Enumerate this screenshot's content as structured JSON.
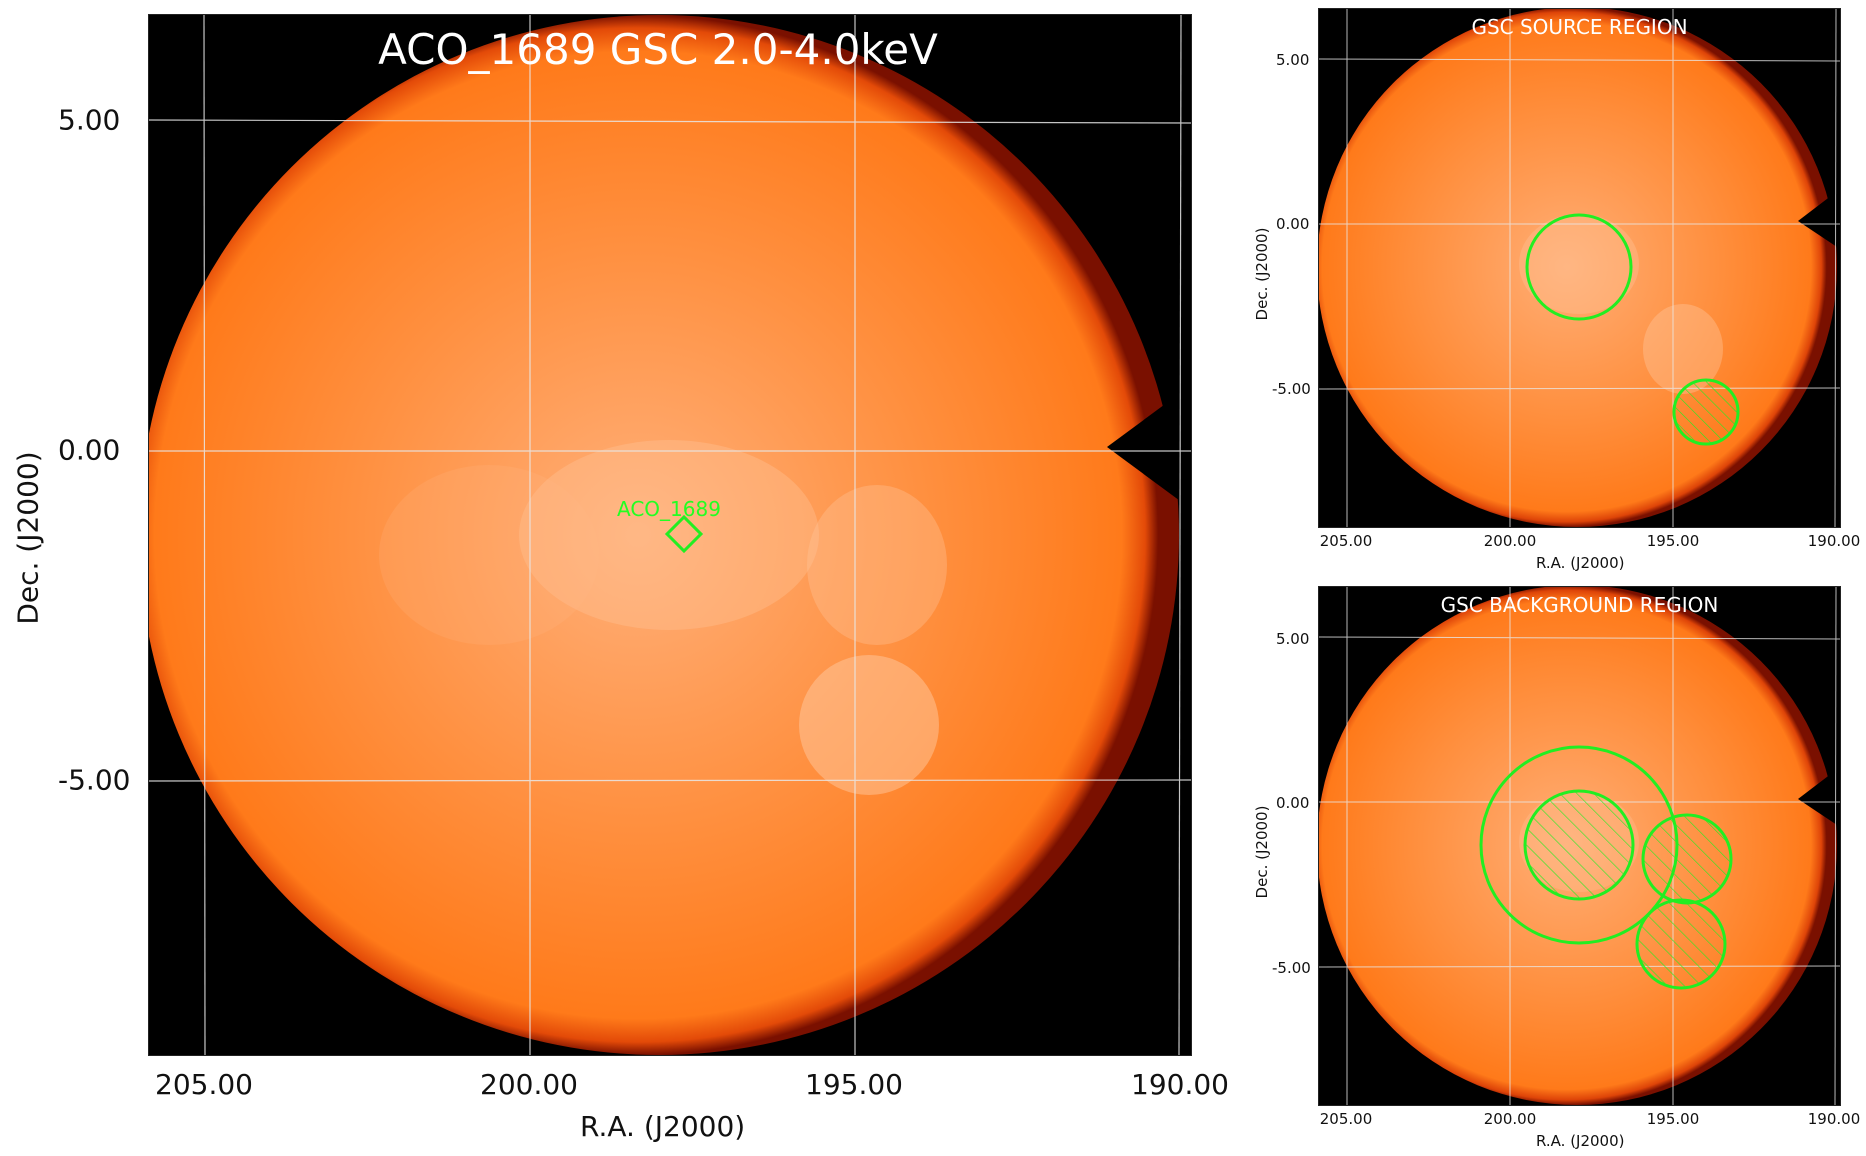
{
  "colors": {
    "disk_center": "#ffb37a",
    "disk_main": "#ff8a2e",
    "disk_edge": "#c81e00",
    "background": "#000000",
    "grid": "#e8e8e8",
    "region": "#22ee22"
  },
  "main_panel": {
    "title": "ACO_1689 GSC 2.0-4.0keV",
    "source_label": "ACO_1689",
    "xlabel": "R.A. (J2000)",
    "ylabel": "Dec. (J2000)",
    "x_ticks": [
      "205.00",
      "200.00",
      "195.00",
      "190.00"
    ],
    "y_ticks": [
      "5.00",
      "0.00",
      "-5.00"
    ]
  },
  "source_panel": {
    "title": "GSC SOURCE REGION",
    "xlabel": "R.A. (J2000)",
    "ylabel": "Dec. (J2000)",
    "x_ticks": [
      "205.00",
      "200.00",
      "195.00",
      "190.00"
    ],
    "y_ticks": [
      "5.00",
      "0.00",
      "-5.00"
    ]
  },
  "background_panel": {
    "title": "GSC BACKGROUND REGION",
    "xlabel": "R.A. (J2000)",
    "ylabel": "Dec. (J2000)",
    "x_ticks": [
      "205.00",
      "200.00",
      "195.00",
      "190.00"
    ],
    "y_ticks": [
      "5.00",
      "0.00",
      "-5.00"
    ]
  }
}
